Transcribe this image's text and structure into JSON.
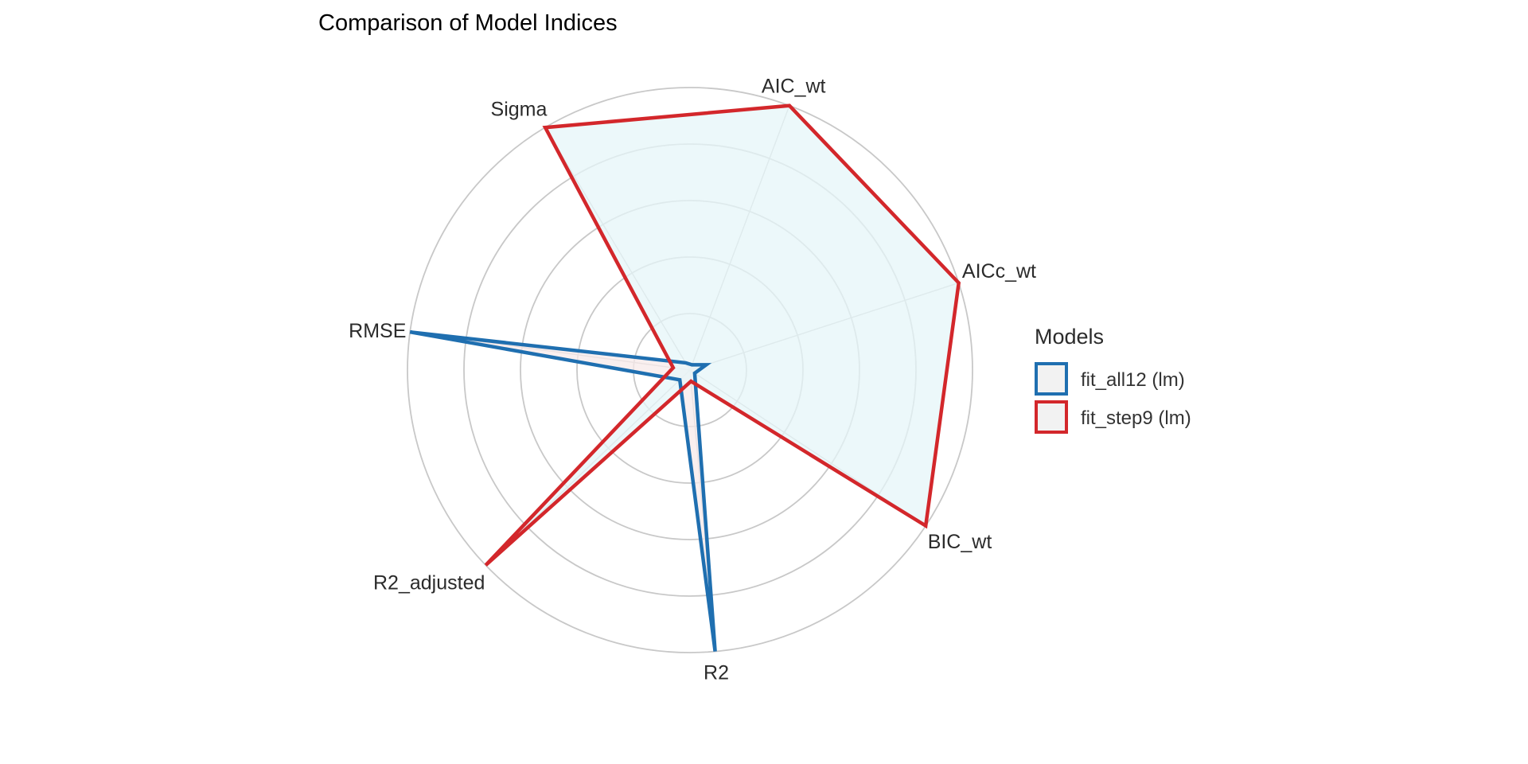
{
  "chart_data": {
    "type": "radar",
    "title": "Comparison of Model Indices",
    "axes": [
      "AIC_wt",
      "AICc_wt",
      "BIC_wt",
      "R2",
      "R2_adjusted",
      "RMSE",
      "Sigma"
    ],
    "rlim": [
      0,
      1
    ],
    "grid_rings": 5,
    "grid": true,
    "legend_position": "right",
    "legend_title": "Models",
    "series": [
      {
        "name": "fit_all12 (lm)",
        "color": "#1f6fb0",
        "fill": "#f7e9e9",
        "values": [
          0.02,
          0.06,
          0.02,
          1.0,
          0.05,
          1.0,
          0.03
        ]
      },
      {
        "name": "fit_step9 (lm)",
        "color": "#d3272b",
        "fill": "#e6f5f8",
        "values": [
          1.0,
          1.0,
          1.0,
          0.04,
          1.0,
          0.06,
          1.0
        ]
      }
    ]
  }
}
